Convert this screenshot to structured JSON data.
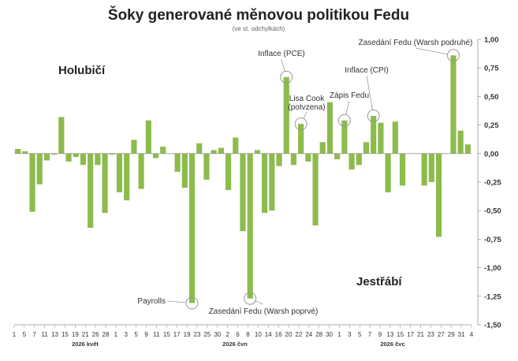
{
  "chart_data": {
    "type": "bar",
    "title": "Šoky generované měnovou politikou Fedu",
    "subtitle": "(ve st. odchylkách)",
    "ylim": [
      -1.5,
      1.0
    ],
    "yticks": [
      "1,00",
      "0,75",
      "0,50",
      "0,25",
      "0,00",
      "-0,25",
      "-0,50",
      "-0,75",
      "-1,00",
      "-1,25",
      "-1,50"
    ],
    "ytick_values": [
      1.0,
      0.75,
      0.5,
      0.25,
      0.0,
      -0.25,
      -0.5,
      -0.75,
      -1.0,
      -1.25,
      -1.5
    ],
    "y_axis_side": "right",
    "grid": false,
    "bar_color": "#8dbb4c",
    "xtick_labels": [
      "1",
      "5",
      "7",
      "11",
      "13",
      "15",
      "19",
      "21",
      "26",
      "28",
      "1",
      "3",
      "5",
      "9",
      "11",
      "15",
      "17",
      "19",
      "23",
      "25",
      "30",
      "2",
      "6",
      "8",
      "10",
      "14",
      "16",
      "20",
      "22",
      "24",
      "28",
      "30",
      "1",
      "3",
      "5",
      "7",
      "9",
      "13",
      "15",
      "17",
      "21",
      "23",
      "27",
      "29",
      "31",
      "4"
    ],
    "month_labels": [
      "2026 květ",
      "2026 čvn",
      "2026 čvc"
    ],
    "values": [
      0.04,
      0.02,
      -0.51,
      -0.27,
      -0.06,
      -0.01,
      0.32,
      -0.07,
      -0.03,
      -0.1,
      -0.65,
      -0.1,
      -0.52,
      -0.01,
      -0.34,
      -0.41,
      0.12,
      -0.31,
      0.29,
      -0.04,
      0.06,
      0.0,
      -0.16,
      -0.3,
      -1.31,
      0.09,
      -0.23,
      0.03,
      0.05,
      -0.32,
      0.14,
      -0.68,
      -1.27,
      0.03,
      -0.52,
      -0.5,
      -0.11,
      0.67,
      -0.1,
      0.26,
      -0.07,
      -0.63,
      0.1,
      0.45,
      -0.05,
      0.29,
      -0.14,
      -0.1,
      0.1,
      0.33,
      0.27,
      -0.34,
      0.28,
      -0.28,
      0.0,
      0.0,
      -0.28,
      -0.25,
      -0.73,
      0.0,
      0.86,
      0.2,
      0.08
    ],
    "annotations": [
      {
        "index": 24,
        "text": "Payrolls"
      },
      {
        "index": 32,
        "text": "Zasedání Fedu (Warsh poprvé)"
      },
      {
        "index": 37,
        "text": "Inflace (PCE)"
      },
      {
        "index": 39,
        "text": "Lisa Cook (potvzena)"
      },
      {
        "index": 45,
        "text": "Zápis Fedu"
      },
      {
        "index": 49,
        "text": "Inflace (CPI)"
      },
      {
        "index": 60,
        "text": "Zasedání Fedu (Warsh podruhé)"
      }
    ],
    "corner_labels": {
      "top_left": "Holubičí",
      "bottom_right": "Jestřábí"
    }
  }
}
